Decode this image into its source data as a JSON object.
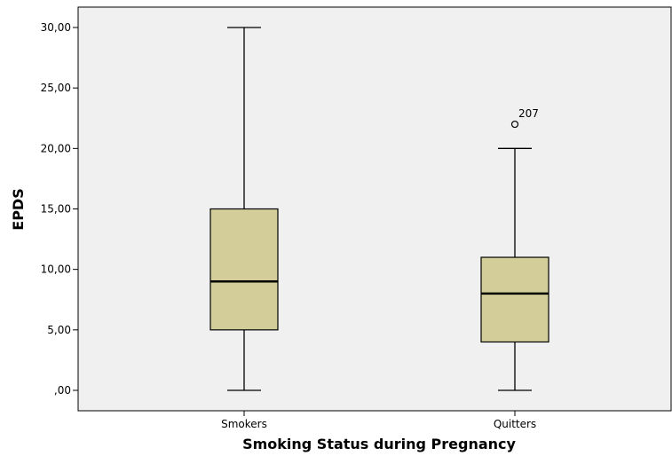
{
  "chart_data": {
    "type": "boxplot",
    "xlabel": "Smoking Status during Pregnancy",
    "ylabel": "EPDS",
    "ylim": [
      0,
      30
    ],
    "yticks": [
      0,
      5,
      10,
      15,
      20,
      25,
      30
    ],
    "ytick_labels": [
      ",00",
      "5,00",
      "10,00",
      "15,00",
      "20,00",
      "25,00",
      "30,00"
    ],
    "categories": [
      "Smokers",
      "Quitters"
    ],
    "boxes": [
      {
        "category": "Smokers",
        "min": 0,
        "q1": 5,
        "median": 9,
        "q3": 15,
        "max": 30,
        "outliers": []
      },
      {
        "category": "Quitters",
        "min": 0,
        "q1": 4,
        "median": 8,
        "q3": 11,
        "max": 20,
        "outliers": [
          {
            "value": 22,
            "label": "207"
          }
        ]
      }
    ],
    "grid": false,
    "colors": {
      "box_fill": "#d3ce99",
      "plot_background": "#f0f0f0",
      "stroke": "#000000"
    }
  }
}
